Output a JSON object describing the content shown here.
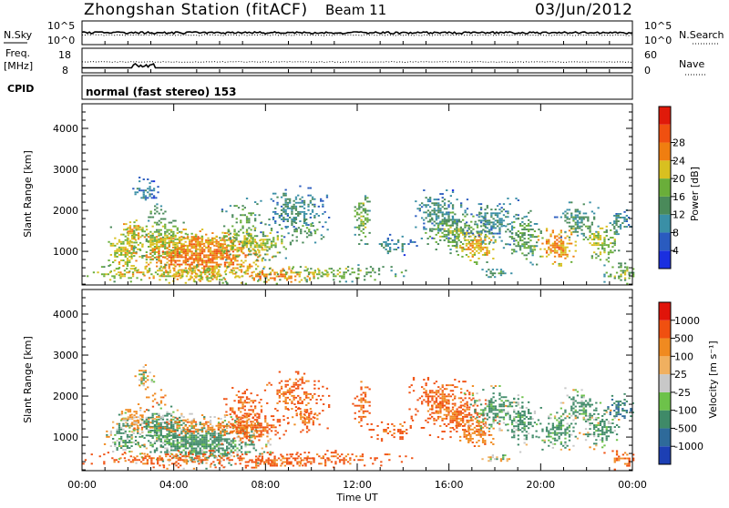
{
  "header": {
    "station": "Zhongshan Station (fitACF)",
    "beam": "Beam 11",
    "date": "03/Jun/2012"
  },
  "top_panels": {
    "nsky": {
      "label": "N.Sky",
      "right_label": "N.Search",
      "left_ticks": [
        "10^5",
        "10^0"
      ],
      "right_ticks": [
        "10^5",
        "10^0"
      ]
    },
    "freq": {
      "label_line1": "Freq.",
      "label_line2": "[MHz]",
      "left_ticks": [
        "18",
        "8"
      ],
      "right_ticks": [
        "60",
        "0"
      ],
      "right_label": "Nave"
    },
    "cpid": {
      "label": "CPID",
      "mode_text": "normal (fast stereo) 153"
    }
  },
  "chart_data": [
    {
      "type": "heatmap",
      "name": "power",
      "ylabel": "Slant Range [km]",
      "xlabel": "Time UT",
      "x_ticks": [
        "00:00",
        "04:00",
        "08:00",
        "12:00",
        "16:00",
        "20:00",
        "00:00"
      ],
      "x_range_hours": [
        0,
        24
      ],
      "y_range_km": [
        180,
        4600
      ],
      "y_ticks": [
        "1000",
        "2000",
        "3000",
        "4000"
      ],
      "colorbar": {
        "label": "Power [dB]",
        "tick_labels": [
          "4",
          "8",
          "12",
          "16",
          "20",
          "24",
          "28"
        ],
        "range": [
          0,
          32
        ],
        "colors": [
          "#1a2fe0",
          "#2a5bbf",
          "#3a8fa6",
          "#4a8a5a",
          "#6aae3a",
          "#d8c020",
          "#f07e10",
          "#f05010",
          "#e01a0a"
        ]
      }
    },
    {
      "type": "heatmap",
      "name": "velocity",
      "ylabel": "Slant Range [km]",
      "xlabel": "Time UT",
      "x_ticks": [
        "00:00",
        "04:00",
        "08:00",
        "12:00",
        "16:00",
        "20:00",
        "00:00"
      ],
      "x_range_hours": [
        0,
        24
      ],
      "y_range_km": [
        180,
        4600
      ],
      "y_ticks": [
        "1000",
        "2000",
        "3000",
        "4000"
      ],
      "colorbar": {
        "label": "Velocity [m s⁻¹]",
        "tick_labels": [
          "1000",
          "500",
          "100",
          "25",
          "-25",
          "-100",
          "-500",
          "-1000"
        ],
        "colors": [
          "#1c3fb4",
          "#2e6a9a",
          "#3f8a68",
          "#6dc24a",
          "#c8c8c8",
          "#f0b060",
          "#f08a20",
          "#f05010",
          "#e0140a"
        ]
      }
    }
  ]
}
